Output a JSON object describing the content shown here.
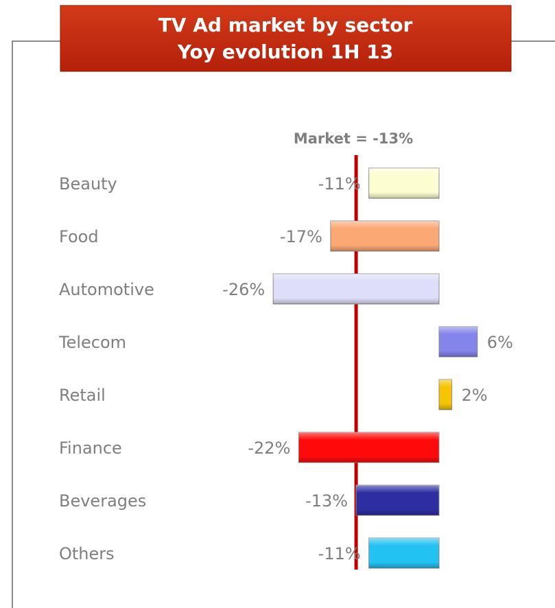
{
  "chart_data": {
    "type": "bar",
    "orientation": "horizontal",
    "title": "TV Ad market by sector",
    "subtitle": "Yoy evolution 1H 13",
    "categories": [
      "Beauty",
      "Food",
      "Automotive",
      "Telecom",
      "Retail",
      "Finance",
      "Beverages",
      "Others"
    ],
    "values": [
      -11,
      -17,
      -26,
      6,
      2,
      -22,
      -13,
      -11
    ],
    "value_labels": [
      "-11%",
      "-17%",
      "-26%",
      "6%",
      "2%",
      "-22%",
      "-13%",
      "-11%"
    ],
    "colors": [
      "#fdfdd2",
      "#fba874",
      "#dedefa",
      "#8484ea",
      "#f6c400",
      "#ff0a0a",
      "#2e2ea2",
      "#22c2f2"
    ],
    "reference": {
      "label": "Market = -13%",
      "value": -13,
      "color": "#c00000"
    }
  }
}
